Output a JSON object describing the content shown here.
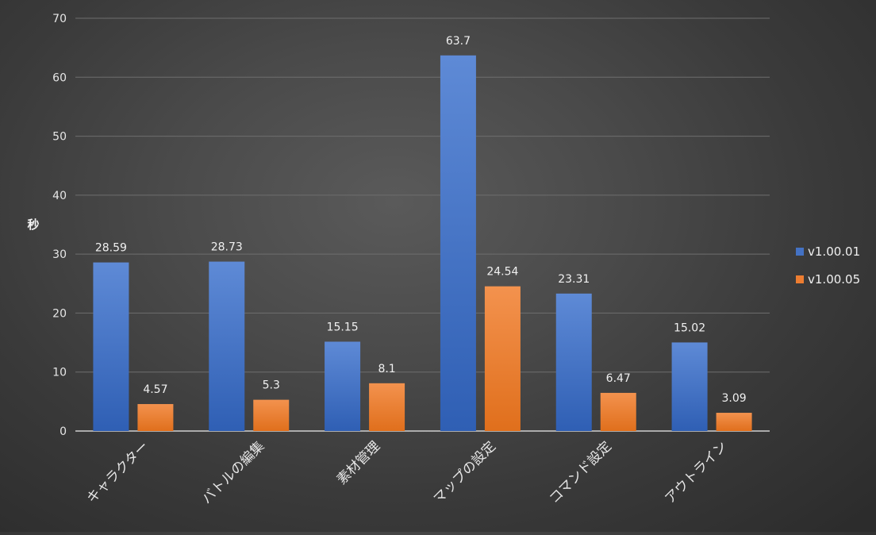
{
  "chart_data": {
    "type": "bar",
    "title": "",
    "xlabel": "",
    "ylabel": "秒",
    "categories": [
      "キャラクター",
      "バトルの編集",
      "素材管理",
      "マップの設定",
      "コマンド設定",
      "アウトライン"
    ],
    "series": [
      {
        "name": "v1.00.01",
        "values": [
          28.59,
          28.73,
          15.15,
          63.7,
          23.31,
          15.02
        ],
        "color": "#4472C4"
      },
      {
        "name": "v1.00.05",
        "values": [
          4.57,
          5.3,
          8.1,
          24.54,
          6.47,
          3.09
        ],
        "color": "#ED7D31"
      }
    ],
    "ylim": [
      0,
      70
    ],
    "yticks": [
      0,
      10,
      20,
      30,
      40,
      50,
      60,
      70
    ],
    "grid": true,
    "legend": "right",
    "data_labels": true
  }
}
